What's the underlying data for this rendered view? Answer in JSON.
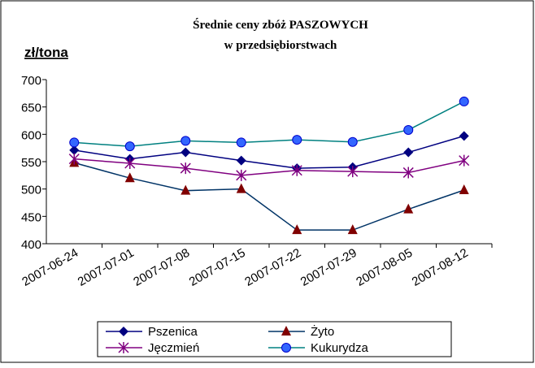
{
  "chart_data": {
    "type": "line",
    "title": "Średnie ceny zbóż PASZOWYCH",
    "subtitle": "w przedsiębiorstwach",
    "y_label": "zł/tona",
    "categories": [
      "2007-06-24",
      "2007-07-01",
      "2007-07-08",
      "2007-07-15",
      "2007-07-22",
      "2007-07-29",
      "2007-08-05",
      "2007-08-12"
    ],
    "series": [
      {
        "name": "Pszenica",
        "color": "#000080",
        "marker_color": "#000080",
        "marker": "diamond",
        "values": [
          571,
          555,
          567,
          552,
          538,
          540,
          567,
          597
        ]
      },
      {
        "name": "Żyto",
        "color": "#003366",
        "marker_color": "#800000",
        "marker": "triangle",
        "values": [
          548,
          520,
          497,
          500,
          425,
          425,
          463,
          498
        ]
      },
      {
        "name": "Jęczmień",
        "color": "#800080",
        "marker_color": "#800080",
        "marker": "star",
        "values": [
          555,
          547,
          538,
          525,
          534,
          532,
          530,
          552
        ]
      },
      {
        "name": "Kukurydza",
        "color": "#008080",
        "marker_color": "#3366ff",
        "marker": "circle",
        "values": [
          585,
          578,
          588,
          585,
          590,
          586,
          608,
          660
        ]
      }
    ],
    "ylim": [
      400,
      700
    ],
    "yticks": [
      400,
      450,
      500,
      550,
      600,
      650,
      700
    ],
    "legend": "bottom"
  }
}
